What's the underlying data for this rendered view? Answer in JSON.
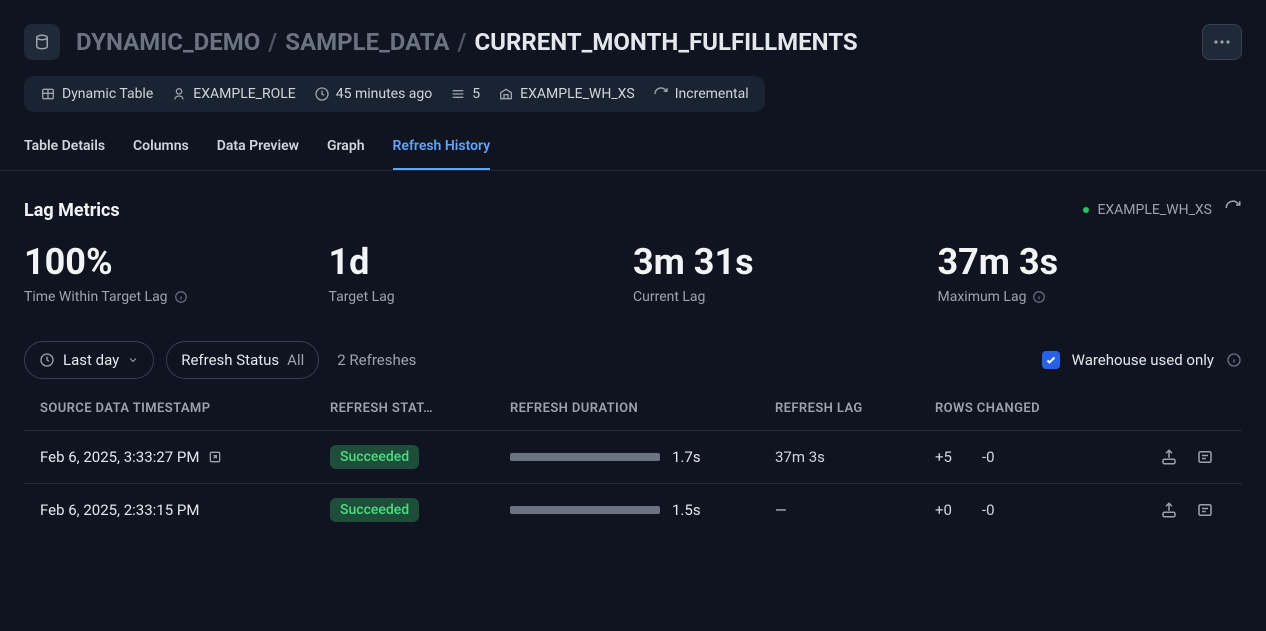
{
  "breadcrumb": {
    "part1": "DYNAMIC_DEMO",
    "part2": "SAMPLE_DATA",
    "part3": "CURRENT_MONTH_FULFILLMENTS"
  },
  "meta": {
    "type": "Dynamic Table",
    "role": "EXAMPLE_ROLE",
    "time": "45 minutes ago",
    "count": "5",
    "warehouse": "EXAMPLE_WH_XS",
    "refresh_mode": "Incremental"
  },
  "tabs": {
    "details": "Table Details",
    "columns": "Columns",
    "preview": "Data Preview",
    "graph": "Graph",
    "history": "Refresh History"
  },
  "lag": {
    "title": "Lag Metrics",
    "warehouse_status": "EXAMPLE_WH_XS",
    "m1_value": "100%",
    "m1_label": "Time Within Target Lag",
    "m2_value": "1d",
    "m2_label": "Target Lag",
    "m3_value": "3m 31s",
    "m3_label": "Current Lag",
    "m4_value": "37m 3s",
    "m4_label": "Maximum Lag"
  },
  "filters": {
    "range_label": "Last day",
    "status_label": "Refresh Status",
    "status_value": "All",
    "count": "2 Refreshes",
    "wh_only": "Warehouse used only"
  },
  "columns": {
    "ts": "SOURCE DATA TIMESTAMP",
    "status": "REFRESH STAT…",
    "duration": "REFRESH DURATION",
    "lag": "REFRESH LAG",
    "rows": "ROWS CHANGED"
  },
  "rows": [
    {
      "ts": "Feb 6, 2025, 3:33:27 PM",
      "status": "Succeeded",
      "duration": "1.7s",
      "lag": "37m 3s",
      "added": "+5",
      "removed": "-0",
      "has_nav_icon": true
    },
    {
      "ts": "Feb 6, 2025, 2:33:15 PM",
      "status": "Succeeded",
      "duration": "1.5s",
      "lag": "—",
      "added": "+0",
      "removed": "-0",
      "has_nav_icon": false
    }
  ]
}
